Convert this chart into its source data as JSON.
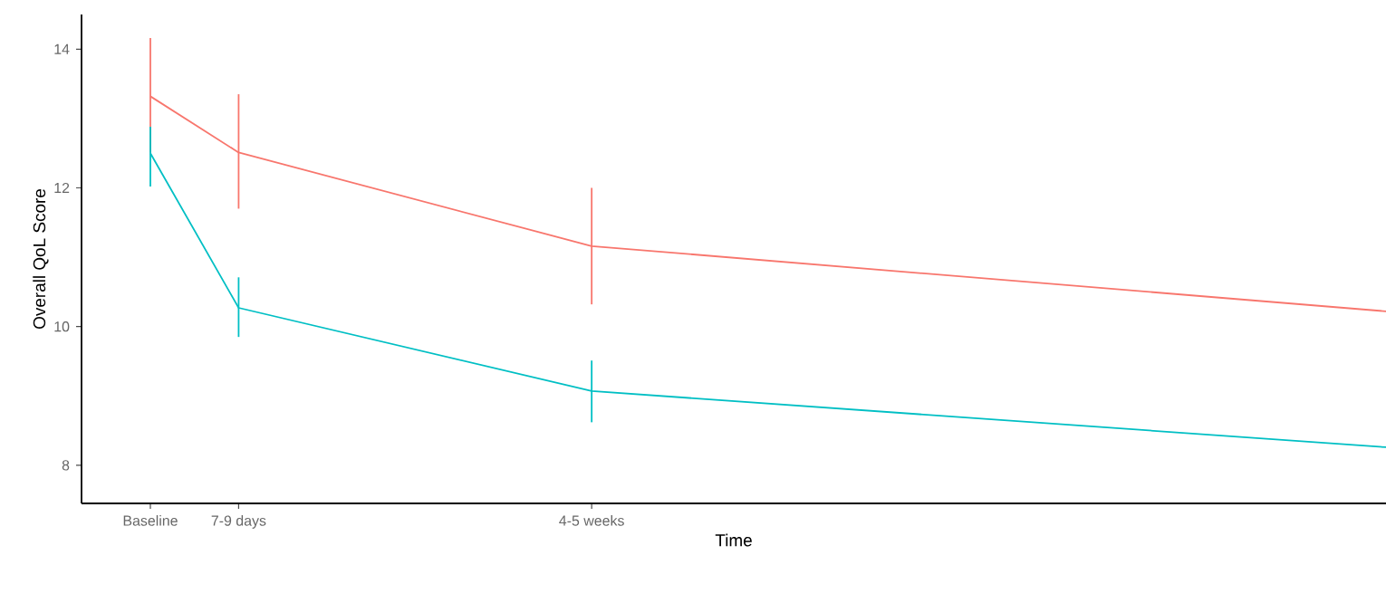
{
  "chart_data": {
    "type": "line",
    "xlabel": "Time",
    "ylabel": "Overall QoL Score",
    "categories": [
      "Baseline",
      "7-9 days",
      null,
      null,
      null,
      "4-5 weeks",
      null,
      null,
      null,
      null,
      null,
      null,
      null,
      null,
      null
    ],
    "ylim": [
      7.45,
      14.5
    ],
    "yticks": [
      8,
      10,
      12,
      14
    ],
    "series": [
      {
        "color": "#f8766d",
        "values": [
          13.32,
          12.51,
          null,
          null,
          null,
          11.16,
          null,
          null,
          null,
          null,
          null,
          null,
          null,
          null,
          10.22
        ],
        "errors": [
          [
            12.51,
            14.16
          ],
          [
            11.7,
            13.35
          ],
          null,
          null,
          null,
          [
            10.32,
            12.0
          ],
          null,
          null,
          null,
          null,
          null,
          null,
          null,
          null,
          null
        ]
      },
      {
        "color": "#00bfc4",
        "values": [
          12.5,
          10.27,
          null,
          null,
          null,
          9.07,
          null,
          null,
          null,
          null,
          null,
          null,
          null,
          null,
          8.26
        ],
        "errors": [
          [
            12.02,
            12.88
          ],
          [
            9.85,
            10.71
          ],
          null,
          null,
          null,
          [
            8.62,
            9.51
          ],
          null,
          null,
          null,
          null,
          null,
          null,
          null,
          null,
          null
        ]
      }
    ],
    "grid": false,
    "marker": "none",
    "line_style": "solid"
  }
}
